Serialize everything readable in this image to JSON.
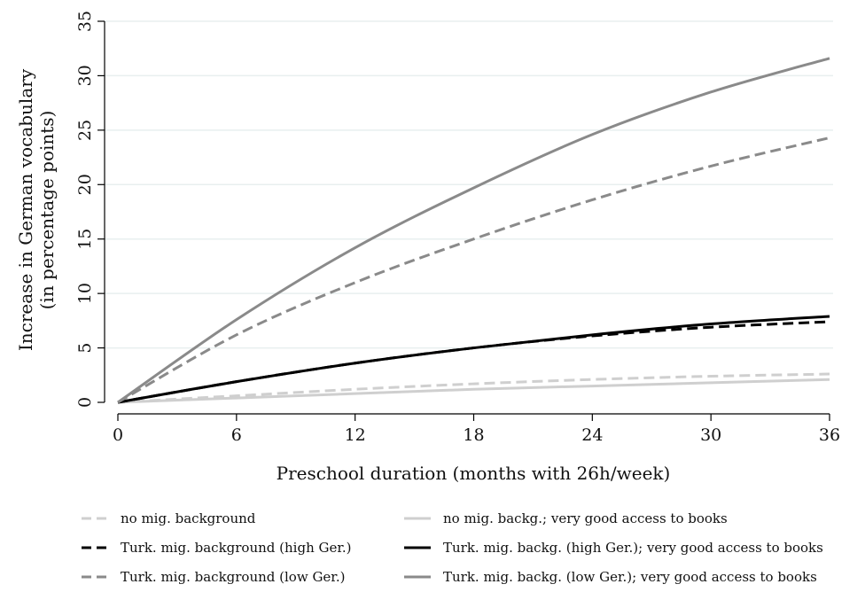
{
  "chart_data": {
    "type": "line",
    "xlabel": "Preschool duration (months with 26h/week)",
    "ylabel_lines": [
      "Increase in German vocabulary",
      "(in percentage points)"
    ],
    "xlim": [
      0,
      36
    ],
    "ylim": [
      0,
      35
    ],
    "xticks": [
      0,
      6,
      12,
      18,
      24,
      30,
      36
    ],
    "yticks": [
      0,
      5,
      10,
      15,
      20,
      25,
      30,
      35
    ],
    "grid": "horizontal",
    "legend_position": "bottom",
    "x": [
      0,
      6,
      12,
      18,
      24,
      30,
      36
    ],
    "series": [
      {
        "name": "no mig. background",
        "color": "#cfcfcf",
        "dash": "dashed",
        "values": [
          0,
          0.6,
          1.2,
          1.7,
          2.1,
          2.4,
          2.6
        ]
      },
      {
        "name": "no mig. backg.; very good access to books",
        "color": "#cfcfcf",
        "dash": "solid",
        "values": [
          0,
          0.4,
          0.8,
          1.2,
          1.5,
          1.8,
          2.1
        ]
      },
      {
        "name": "Turk. mig. background (high Ger.)",
        "color": "#000000",
        "dash": "dashed",
        "values": [
          0,
          1.9,
          3.6,
          5.0,
          6.1,
          6.9,
          7.4
        ]
      },
      {
        "name": "Turk. mig. backg. (high Ger.); very good access to books",
        "color": "#000000",
        "dash": "solid",
        "values": [
          0,
          1.9,
          3.6,
          5.0,
          6.2,
          7.2,
          7.9
        ]
      },
      {
        "name": "Turk. mig. background (low Ger.)",
        "color": "#8a8a8a",
        "dash": "dashed",
        "values": [
          0,
          6.2,
          11.0,
          15.0,
          18.6,
          21.7,
          24.3
        ]
      },
      {
        "name": "Turk. mig. backg. (low Ger.); very good access to books",
        "color": "#8a8a8a",
        "dash": "solid",
        "values": [
          0,
          7.6,
          14.2,
          19.7,
          24.6,
          28.5,
          31.6
        ]
      }
    ]
  }
}
